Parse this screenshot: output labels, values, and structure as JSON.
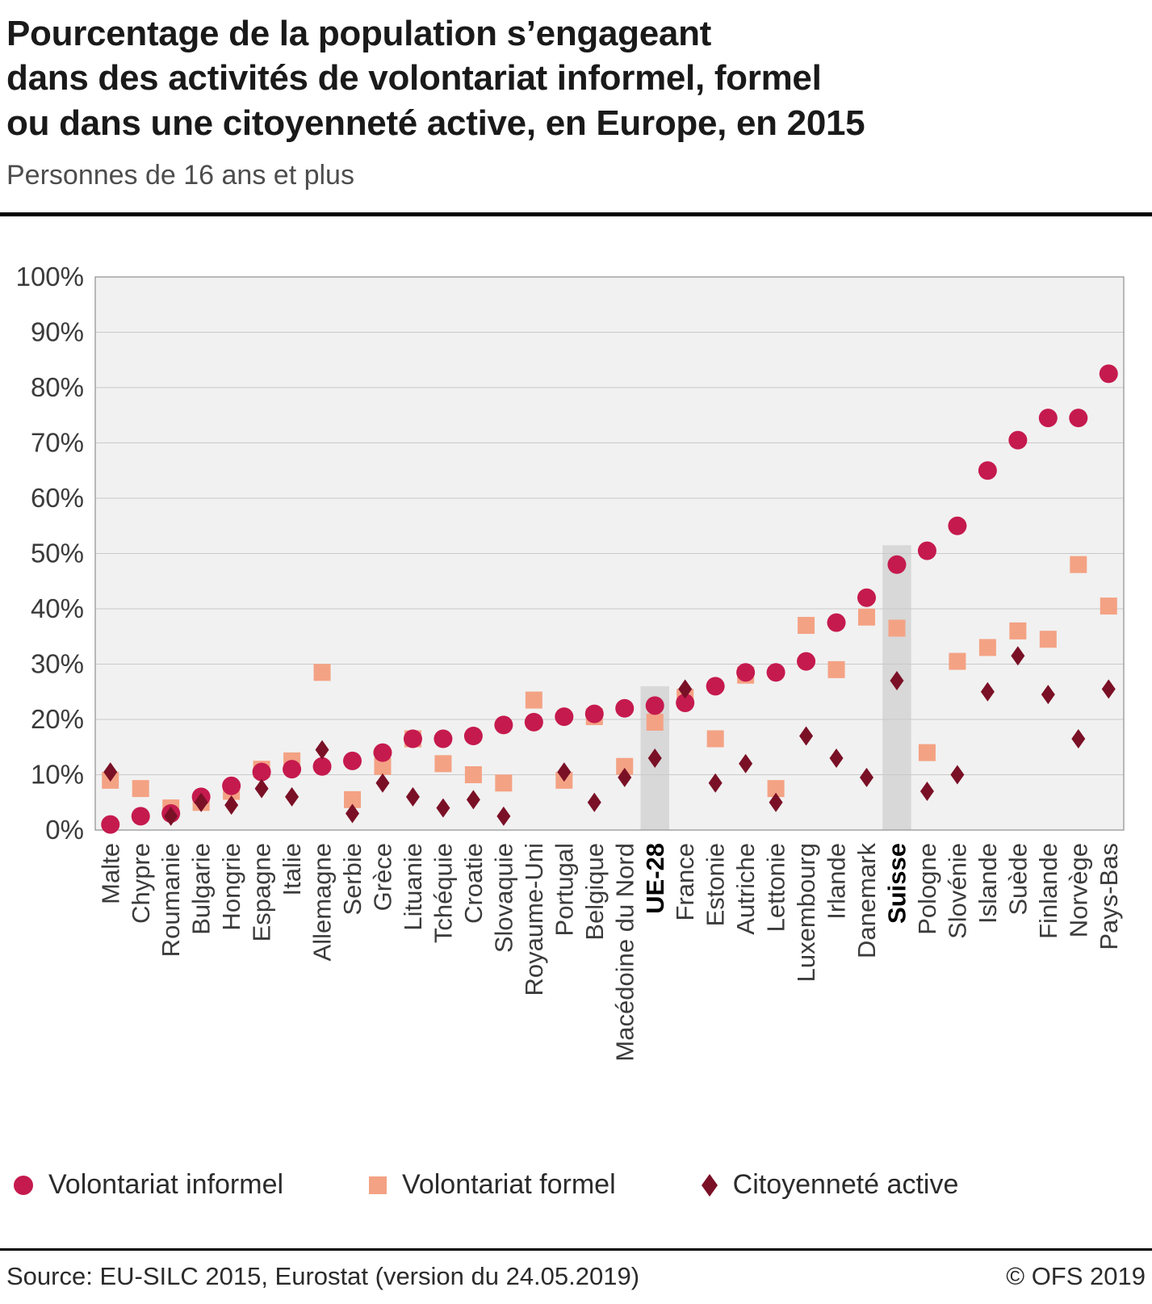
{
  "header": {
    "title": "Pourcentage de la population s’engageant\ndans des activités de volontariat informel, formel\nou dans une citoyenneté active, en Europe, en 2015",
    "subtitle": "Personnes de 16 ans et plus"
  },
  "legend": {
    "items": [
      {
        "label": "Volontariat informel",
        "marker": "circle-icon",
        "color": "#c51a4e"
      },
      {
        "label": "Volontariat formel",
        "marker": "square-icon",
        "color": "#f4a284"
      },
      {
        "label": "Citoyenneté active",
        "marker": "diamond-icon",
        "color": "#7a1026"
      }
    ]
  },
  "footer": {
    "source": "Source: EU-SILC 2015, Eurostat (version du 24.05.2019)",
    "copyright": "© OFS 2019"
  },
  "chart_data": {
    "type": "scatter",
    "title": "Pourcentage de la population s’engageant dans des activités de volontariat informel, formel ou dans une citoyenneté active, en Europe, en 2015",
    "xlabel": "",
    "ylabel": "",
    "ylim": [
      0,
      100
    ],
    "yticks": [
      "0%",
      "10%",
      "20%",
      "30%",
      "40%",
      "50%",
      "60%",
      "70%",
      "80%",
      "90%",
      "100%"
    ],
    "grid": true,
    "legend_position": "bottom",
    "highlighted_categories": [
      "UE-28",
      "Suisse"
    ],
    "colors": {
      "plot_background": "#f1f1f1",
      "grid_line": "#c9c9c9",
      "plot_border": "#969696",
      "highlight_band": "#d8d8d8"
    },
    "categories": [
      "Malte",
      "Chypre",
      "Roumanie",
      "Bulgarie",
      "Hongrie",
      "Espagne",
      "Italie",
      "Allemagne",
      "Serbie",
      "Grèce",
      "Lituanie",
      "Tchéquie",
      "Croatie",
      "Slovaquie",
      "Royaume-Uni",
      "Portugal",
      "Belgique",
      "Macédoine du Nord",
      "UE-28",
      "France",
      "Estonie",
      "Autriche",
      "Lettonie",
      "Luxembourg",
      "Irlande",
      "Danemark",
      "Suisse",
      "Pologne",
      "Slovénie",
      "Islande",
      "Suède",
      "Finlande",
      "Norvège",
      "Pays-Bas"
    ],
    "series": [
      {
        "name": "Volontariat informel",
        "marker": "circle",
        "color": "#c51a4e",
        "values": [
          1,
          2.5,
          3,
          6,
          8,
          10.5,
          11,
          11.5,
          12.5,
          14,
          16.5,
          16.5,
          17,
          19,
          19.5,
          20.5,
          21,
          22,
          22.5,
          23,
          26,
          28.5,
          28.5,
          30.5,
          37.5,
          42,
          48,
          50.5,
          55,
          65,
          70.5,
          74.5,
          74.5,
          82.5
        ]
      },
      {
        "name": "Volontariat formel",
        "marker": "square",
        "color": "#f4a284",
        "values": [
          9,
          7.5,
          4,
          5,
          7,
          11,
          12.5,
          28.5,
          5.5,
          11.5,
          16.5,
          12,
          10,
          8.5,
          23.5,
          9,
          20.5,
          11.5,
          19.5,
          24,
          16.5,
          28,
          7.5,
          37,
          29,
          38.5,
          36.5,
          14,
          30.5,
          33,
          36,
          34.5,
          48,
          40.5
        ]
      },
      {
        "name": "Citoyenneté active",
        "marker": "diamond",
        "color": "#7a1026",
        "values": [
          10.5,
          null,
          2.5,
          5,
          4.5,
          7.5,
          6,
          14.5,
          3,
          8.5,
          6,
          4,
          5.5,
          2.5,
          null,
          10.5,
          5,
          9.5,
          13,
          25.5,
          8.5,
          12,
          5,
          17,
          13,
          9.5,
          27,
          7,
          10,
          25,
          31.5,
          24.5,
          16.5,
          25.5
        ]
      }
    ]
  }
}
